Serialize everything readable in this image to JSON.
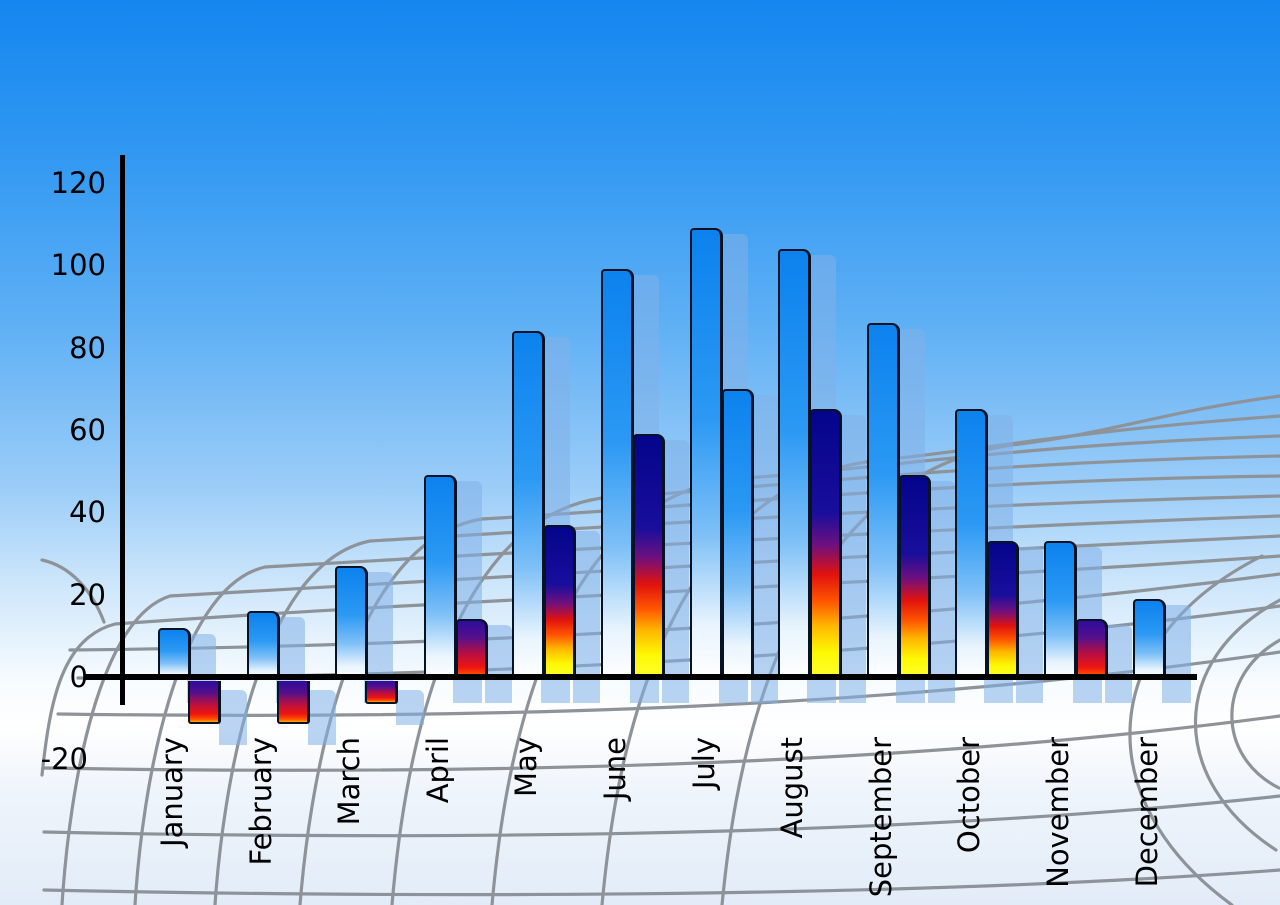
{
  "chart_data": {
    "type": "bar",
    "title": "",
    "xlabel": "",
    "ylabel": "",
    "categories": [
      "January",
      "February",
      "March",
      "April",
      "May",
      "June",
      "July",
      "August",
      "September",
      "October",
      "November",
      "December"
    ],
    "series": [
      {
        "name": "primary-blue-bars",
        "color_style": "blue-gradient",
        "values": [
          12,
          16,
          27,
          49,
          84,
          99,
          109,
          104,
          86,
          65,
          33,
          19
        ]
      },
      {
        "name": "secondary-thermal-bars",
        "color_style": "navy-red-yellow-gradient",
        "values": [
          -10,
          -10,
          -5,
          14,
          37,
          59,
          70,
          65,
          49,
          33,
          14,
          null
        ],
        "bar_styles": [
          "navy-red",
          "navy-red",
          "navy-red",
          "navy-red",
          "navy-red-yellow",
          "navy-red-yellow",
          "blue",
          "navy-red-yellow",
          "navy-red-yellow",
          "navy-red-yellow",
          "navy-red",
          "none"
        ]
      }
    ],
    "yticks": [
      120,
      100,
      80,
      60,
      40,
      20,
      0,
      -20
    ],
    "ylim": [
      -20,
      130
    ],
    "legend_position": "none",
    "grid": "decorative-perspective-floor"
  },
  "colors": {
    "sky_top": "#1486ef",
    "sky_bottom": "#e2ecf8",
    "bar_blue": "#0c82ee",
    "bar_fade_white": "#ffffff",
    "echo_blue": "#82b1e7",
    "navy": "#04048c",
    "red": "#ee1510",
    "orange": "#ff5500",
    "yellow": "#fdf803",
    "violet": "#2f0b9b",
    "grid_line": "#8d9399",
    "axis": "#000000",
    "label_text": "#000000"
  }
}
